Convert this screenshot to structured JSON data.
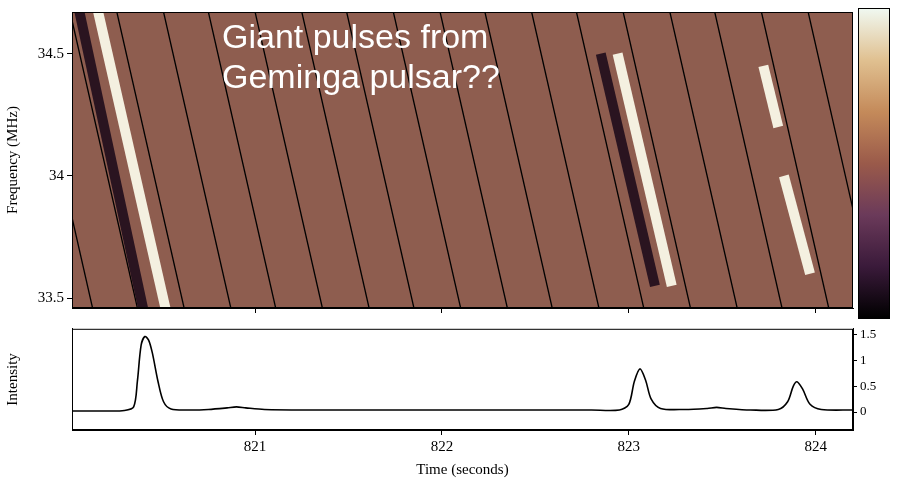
{
  "chart_data": [
    {
      "type": "line",
      "y_label": "Frequency (MHz)",
      "annotation": "Giant pulses from Geminga pulsar??",
      "xlim": [
        820.02,
        824.2
      ],
      "ylim": [
        33.46,
        34.67
      ],
      "xticks": [
        821,
        822,
        823,
        824
      ],
      "yticks": [
        33.5,
        34,
        34.5
      ],
      "tick_labels": "y",
      "grid": false,
      "colorbar": {
        "colors": [
          "#000000",
          "#3a1a3a",
          "#6b3a5a",
          "#9a5a4a",
          "#c48a5a",
          "#e0c090",
          "#f0f8f0"
        ]
      },
      "series": [
        {
          "color": "#2a1420",
          "line_style": "band",
          "segments": [
            {
              "x": [
                820.06,
                820.4
              ],
              "y": [
                34.67,
                33.46
              ]
            },
            {
              "x": [
                822.85,
                823.14
              ],
              "y": [
                34.5,
                33.55
              ]
            }
          ]
        },
        {
          "color": "#f4f0e0",
          "line_style": "band",
          "segments": [
            {
              "x": [
                820.16,
                820.52
              ],
              "y": [
                34.67,
                33.46
              ]
            },
            {
              "x": [
                822.94,
                823.23
              ],
              "y": [
                34.5,
                33.55
              ]
            },
            {
              "x": [
                823.83,
                823.97
              ],
              "y": [
                34.0,
                33.6
              ]
            },
            {
              "x": [
                823.72,
                823.8
              ],
              "y": [
                34.45,
                34.2
              ]
            }
          ]
        },
        {
          "color": "#000000",
          "line_style": "solid",
          "segments": [
            {
              "x": [
                819.77,
                820.13
              ],
              "y": [
                34.67,
                33.46
              ]
            },
            {
              "x": [
                820.01,
                820.37
              ],
              "y": [
                34.67,
                33.46
              ]
            },
            {
              "x": [
                820.26,
                820.62
              ],
              "y": [
                34.67,
                33.46
              ]
            },
            {
              "x": [
                820.51,
                820.87
              ],
              "y": [
                34.67,
                33.46
              ]
            },
            {
              "x": [
                820.75,
                821.11
              ],
              "y": [
                34.67,
                33.46
              ]
            },
            {
              "x": [
                821.0,
                821.36
              ],
              "y": [
                34.67,
                33.46
              ]
            },
            {
              "x": [
                821.25,
                821.61
              ],
              "y": [
                34.67,
                33.46
              ]
            },
            {
              "x": [
                821.49,
                821.85
              ],
              "y": [
                34.67,
                33.46
              ]
            },
            {
              "x": [
                821.74,
                822.1
              ],
              "y": [
                34.67,
                33.46
              ]
            },
            {
              "x": [
                821.99,
                822.35
              ],
              "y": [
                34.67,
                33.46
              ]
            },
            {
              "x": [
                822.23,
                822.59
              ],
              "y": [
                34.67,
                33.46
              ]
            },
            {
              "x": [
                822.48,
                822.84
              ],
              "y": [
                34.67,
                33.46
              ]
            },
            {
              "x": [
                822.72,
                823.08
              ],
              "y": [
                34.67,
                33.46
              ]
            },
            {
              "x": [
                822.97,
                823.33
              ],
              "y": [
                34.67,
                33.46
              ]
            },
            {
              "x": [
                823.22,
                823.58
              ],
              "y": [
                34.67,
                33.46
              ]
            },
            {
              "x": [
                823.46,
                823.82
              ],
              "y": [
                34.67,
                33.46
              ]
            },
            {
              "x": [
                823.71,
                824.07
              ],
              "y": [
                34.67,
                33.46
              ]
            },
            {
              "x": [
                823.96,
                824.32
              ],
              "y": [
                34.67,
                33.46
              ]
            }
          ]
        }
      ]
    },
    {
      "type": "line",
      "x_label": "Time (seconds)",
      "y_label": "Intensity",
      "xlim": [
        820.02,
        824.2
      ],
      "ylim": [
        -0.35,
        1.62
      ],
      "xticks": [
        821,
        822,
        823,
        824
      ],
      "yticks": [
        0,
        0.5,
        1,
        1.5
      ],
      "grid": false,
      "color": "#000000",
      "x": [
        820.02,
        820.1,
        820.2,
        820.3,
        820.35,
        820.37,
        820.39,
        820.41,
        820.43,
        820.45,
        820.48,
        820.51,
        820.55,
        820.65,
        820.75,
        820.85,
        820.9,
        820.95,
        821.05,
        821.3,
        821.6,
        821.9,
        822.2,
        822.5,
        822.8,
        822.95,
        823.0,
        823.03,
        823.06,
        823.09,
        823.12,
        823.17,
        823.3,
        823.42,
        823.47,
        823.52,
        823.65,
        823.8,
        823.85,
        823.88,
        823.9,
        823.93,
        823.97,
        824.03,
        824.2
      ],
      "values": [
        0.02,
        0.02,
        0.02,
        0.03,
        0.1,
        0.6,
        1.3,
        1.47,
        1.4,
        1.15,
        0.6,
        0.2,
        0.06,
        0.04,
        0.05,
        0.08,
        0.1,
        0.08,
        0.05,
        0.04,
        0.04,
        0.04,
        0.04,
        0.04,
        0.04,
        0.04,
        0.15,
        0.6,
        0.84,
        0.62,
        0.25,
        0.07,
        0.05,
        0.07,
        0.09,
        0.07,
        0.04,
        0.05,
        0.2,
        0.5,
        0.59,
        0.45,
        0.15,
        0.05,
        0.04
      ]
    }
  ]
}
